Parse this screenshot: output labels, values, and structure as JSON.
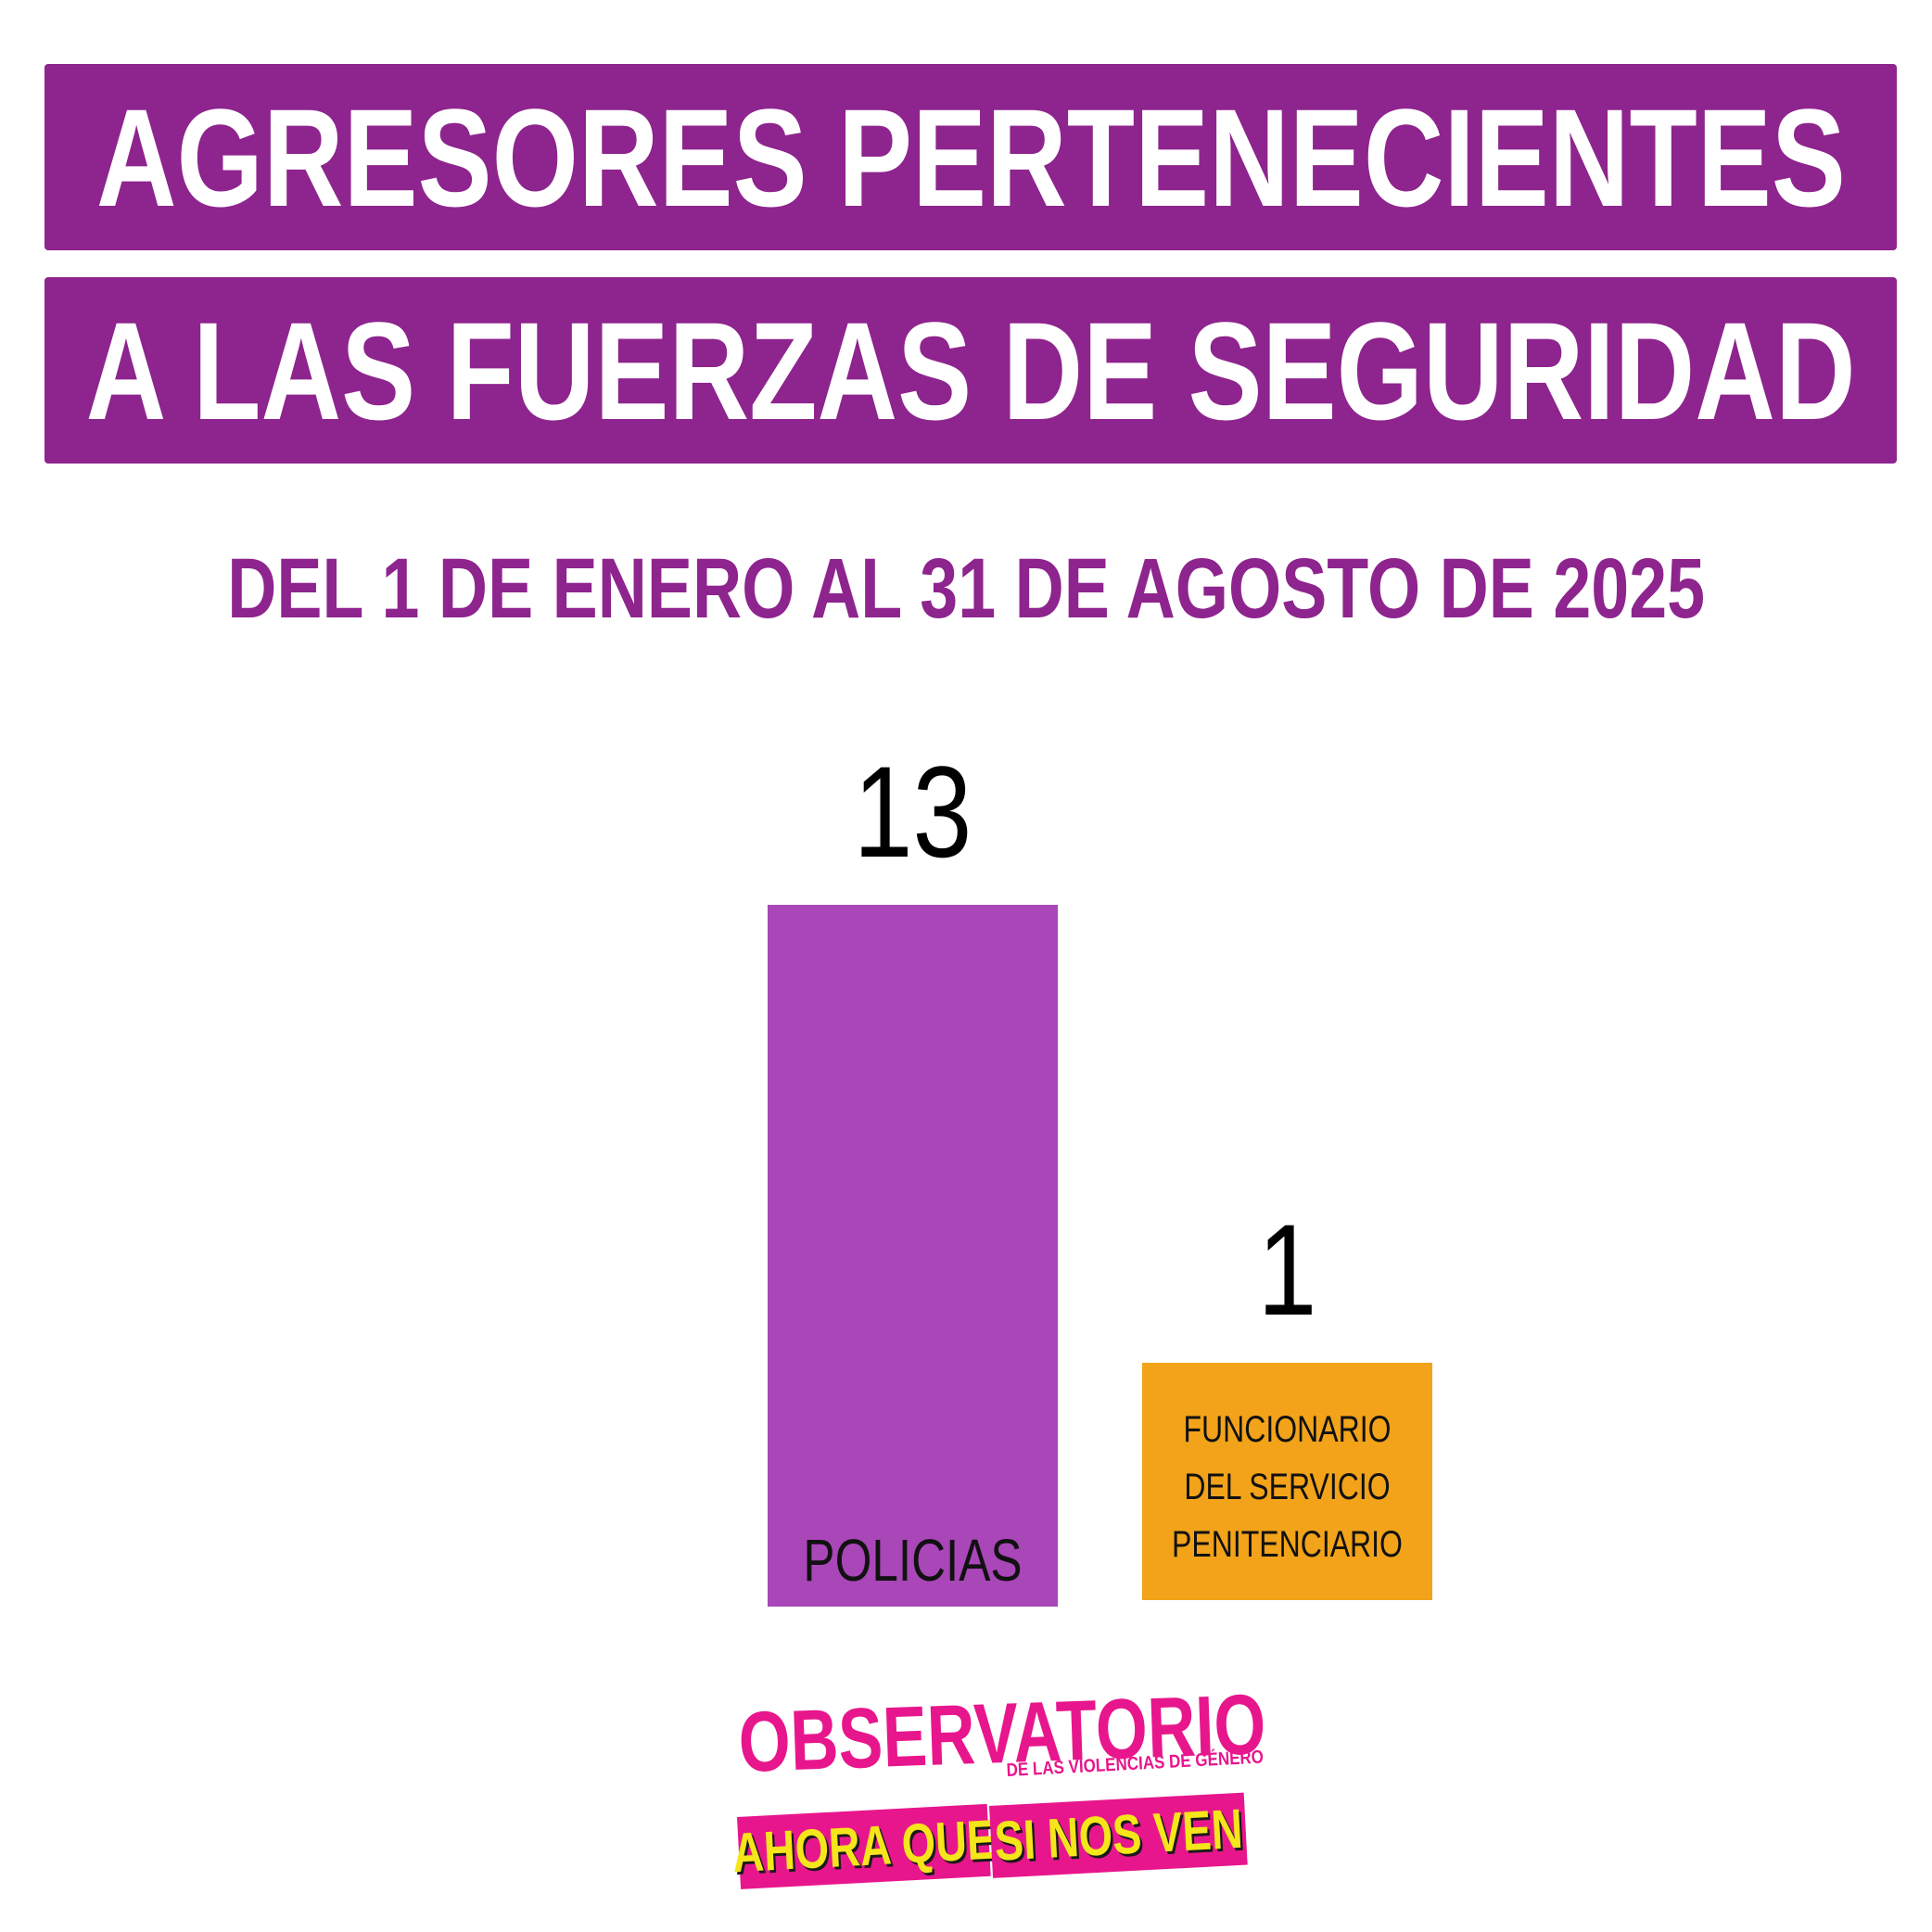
{
  "header": {
    "line1": "AGRESORES PERTENECIENTES",
    "line2": "A LAS FUERZAS DE SEGURIDAD",
    "date_range": "DEL 1 DE ENERO AL 31 DE AGOSTO DE 2025"
  },
  "colors": {
    "banner": "#8e248e",
    "policias": "#a946b8",
    "penitenciario": "#f2a31a",
    "logo_pink": "#e8168c",
    "logo_yellow": "#f5e51b"
  },
  "chart_data": {
    "type": "bar",
    "title": "AGRESORES PERTENECIENTES A LAS FUERZAS DE SEGURIDAD",
    "subtitle": "DEL 1 DE ENERO AL 31 DE AGOSTO DE 2025",
    "categories": [
      "POLICIAS",
      "FUNCIONARIO DEL SERVICIO PENITENCIARIO"
    ],
    "category_lines": [
      [
        "POLICIAS"
      ],
      [
        "FUNCIONARIO",
        "DEL SERVICIO",
        "PENITENCIARIO"
      ]
    ],
    "values": [
      13,
      1
    ],
    "data_labels": [
      "13",
      "1"
    ],
    "colors": [
      "#a946b8",
      "#f2a31a"
    ],
    "xlabel": "",
    "ylabel": "",
    "grid": false
  },
  "logo": {
    "title": "OBSERVATORIO",
    "subtitle": "DE LAS VIOLENCIAS DE GÉNERO",
    "part1": "AHORA QUE",
    "part2": "SI NOS VEN"
  }
}
